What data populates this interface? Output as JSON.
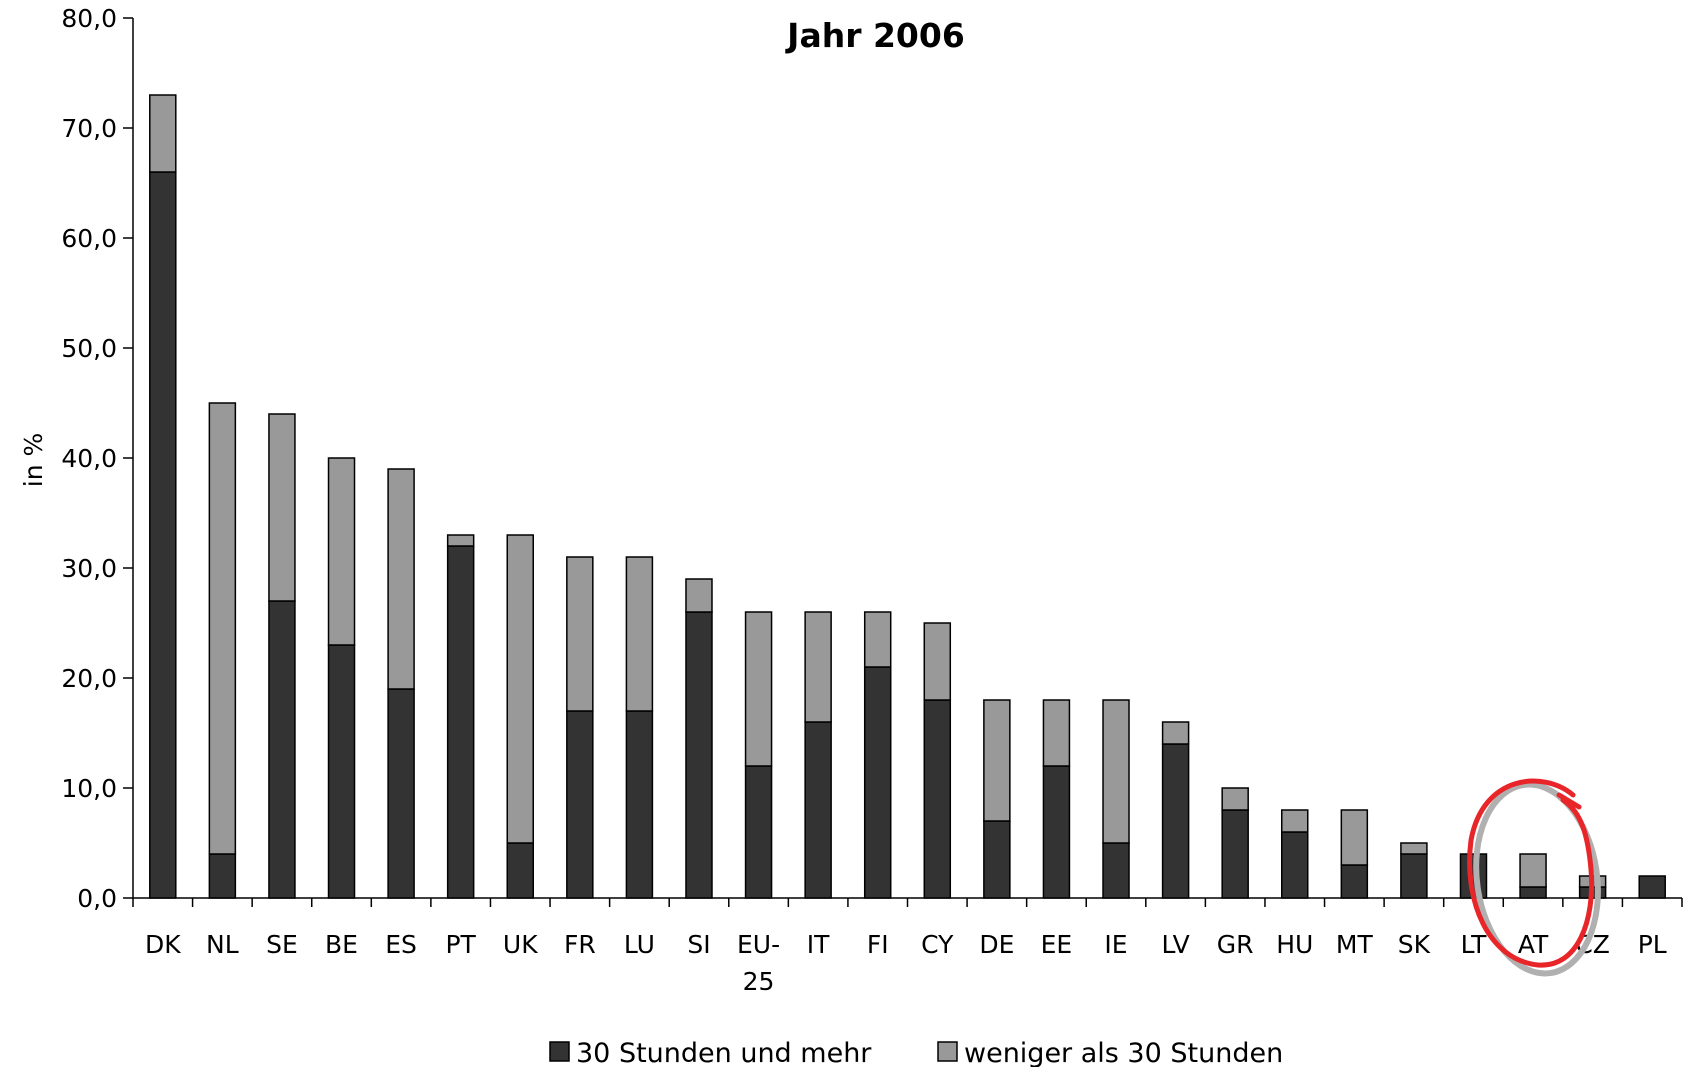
{
  "chart_data": {
    "type": "bar",
    "stacked": true,
    "title": "Jahr 2006",
    "xlabel": "",
    "ylabel": "in %",
    "ylim": [
      0,
      80
    ],
    "yticks": [
      "0,0",
      "10,0",
      "20,0",
      "30,0",
      "40,0",
      "50,0",
      "60,0",
      "70,0",
      "80,0"
    ],
    "categories": [
      "DK",
      "NL",
      "SE",
      "BE",
      "ES",
      "PT",
      "UK",
      "FR",
      "LU",
      "SI",
      "EU-25",
      "IT",
      "FI",
      "CY",
      "DE",
      "EE",
      "IE",
      "LV",
      "GR",
      "HU",
      "MT",
      "SK",
      "LT",
      "AT",
      "CZ",
      "PL"
    ],
    "category_lines": [
      [
        "DK"
      ],
      [
        "NL"
      ],
      [
        "SE"
      ],
      [
        "BE"
      ],
      [
        "ES"
      ],
      [
        "PT"
      ],
      [
        "UK"
      ],
      [
        "FR"
      ],
      [
        "LU"
      ],
      [
        "SI"
      ],
      [
        "EU-",
        "25"
      ],
      [
        "IT"
      ],
      [
        "FI"
      ],
      [
        "CY"
      ],
      [
        "DE"
      ],
      [
        "EE"
      ],
      [
        "IE"
      ],
      [
        "LV"
      ],
      [
        "GR"
      ],
      [
        "HU"
      ],
      [
        "MT"
      ],
      [
        "SK"
      ],
      [
        "LT"
      ],
      [
        "AT"
      ],
      [
        "CZ"
      ],
      [
        "PL"
      ]
    ],
    "series": [
      {
        "name": "30 Stunden und mehr",
        "color": "#333333",
        "values": [
          66,
          4,
          27,
          23,
          19,
          32,
          5,
          17,
          17,
          26,
          12,
          16,
          21,
          18,
          7,
          12,
          5,
          14,
          8,
          6,
          3,
          4,
          4,
          1,
          1,
          2
        ]
      },
      {
        "name": "weniger als 30 Stunden",
        "color": "#999999",
        "values": [
          7,
          41,
          17,
          17,
          20,
          1,
          28,
          14,
          14,
          3,
          14,
          10,
          5,
          7,
          11,
          6,
          13,
          2,
          2,
          2,
          5,
          1,
          0,
          3,
          1,
          0
        ]
      }
    ],
    "grid": false,
    "legend_position": "bottom",
    "highlight": {
      "category": "AT",
      "shape": "circle",
      "color": "#e8262a"
    }
  }
}
